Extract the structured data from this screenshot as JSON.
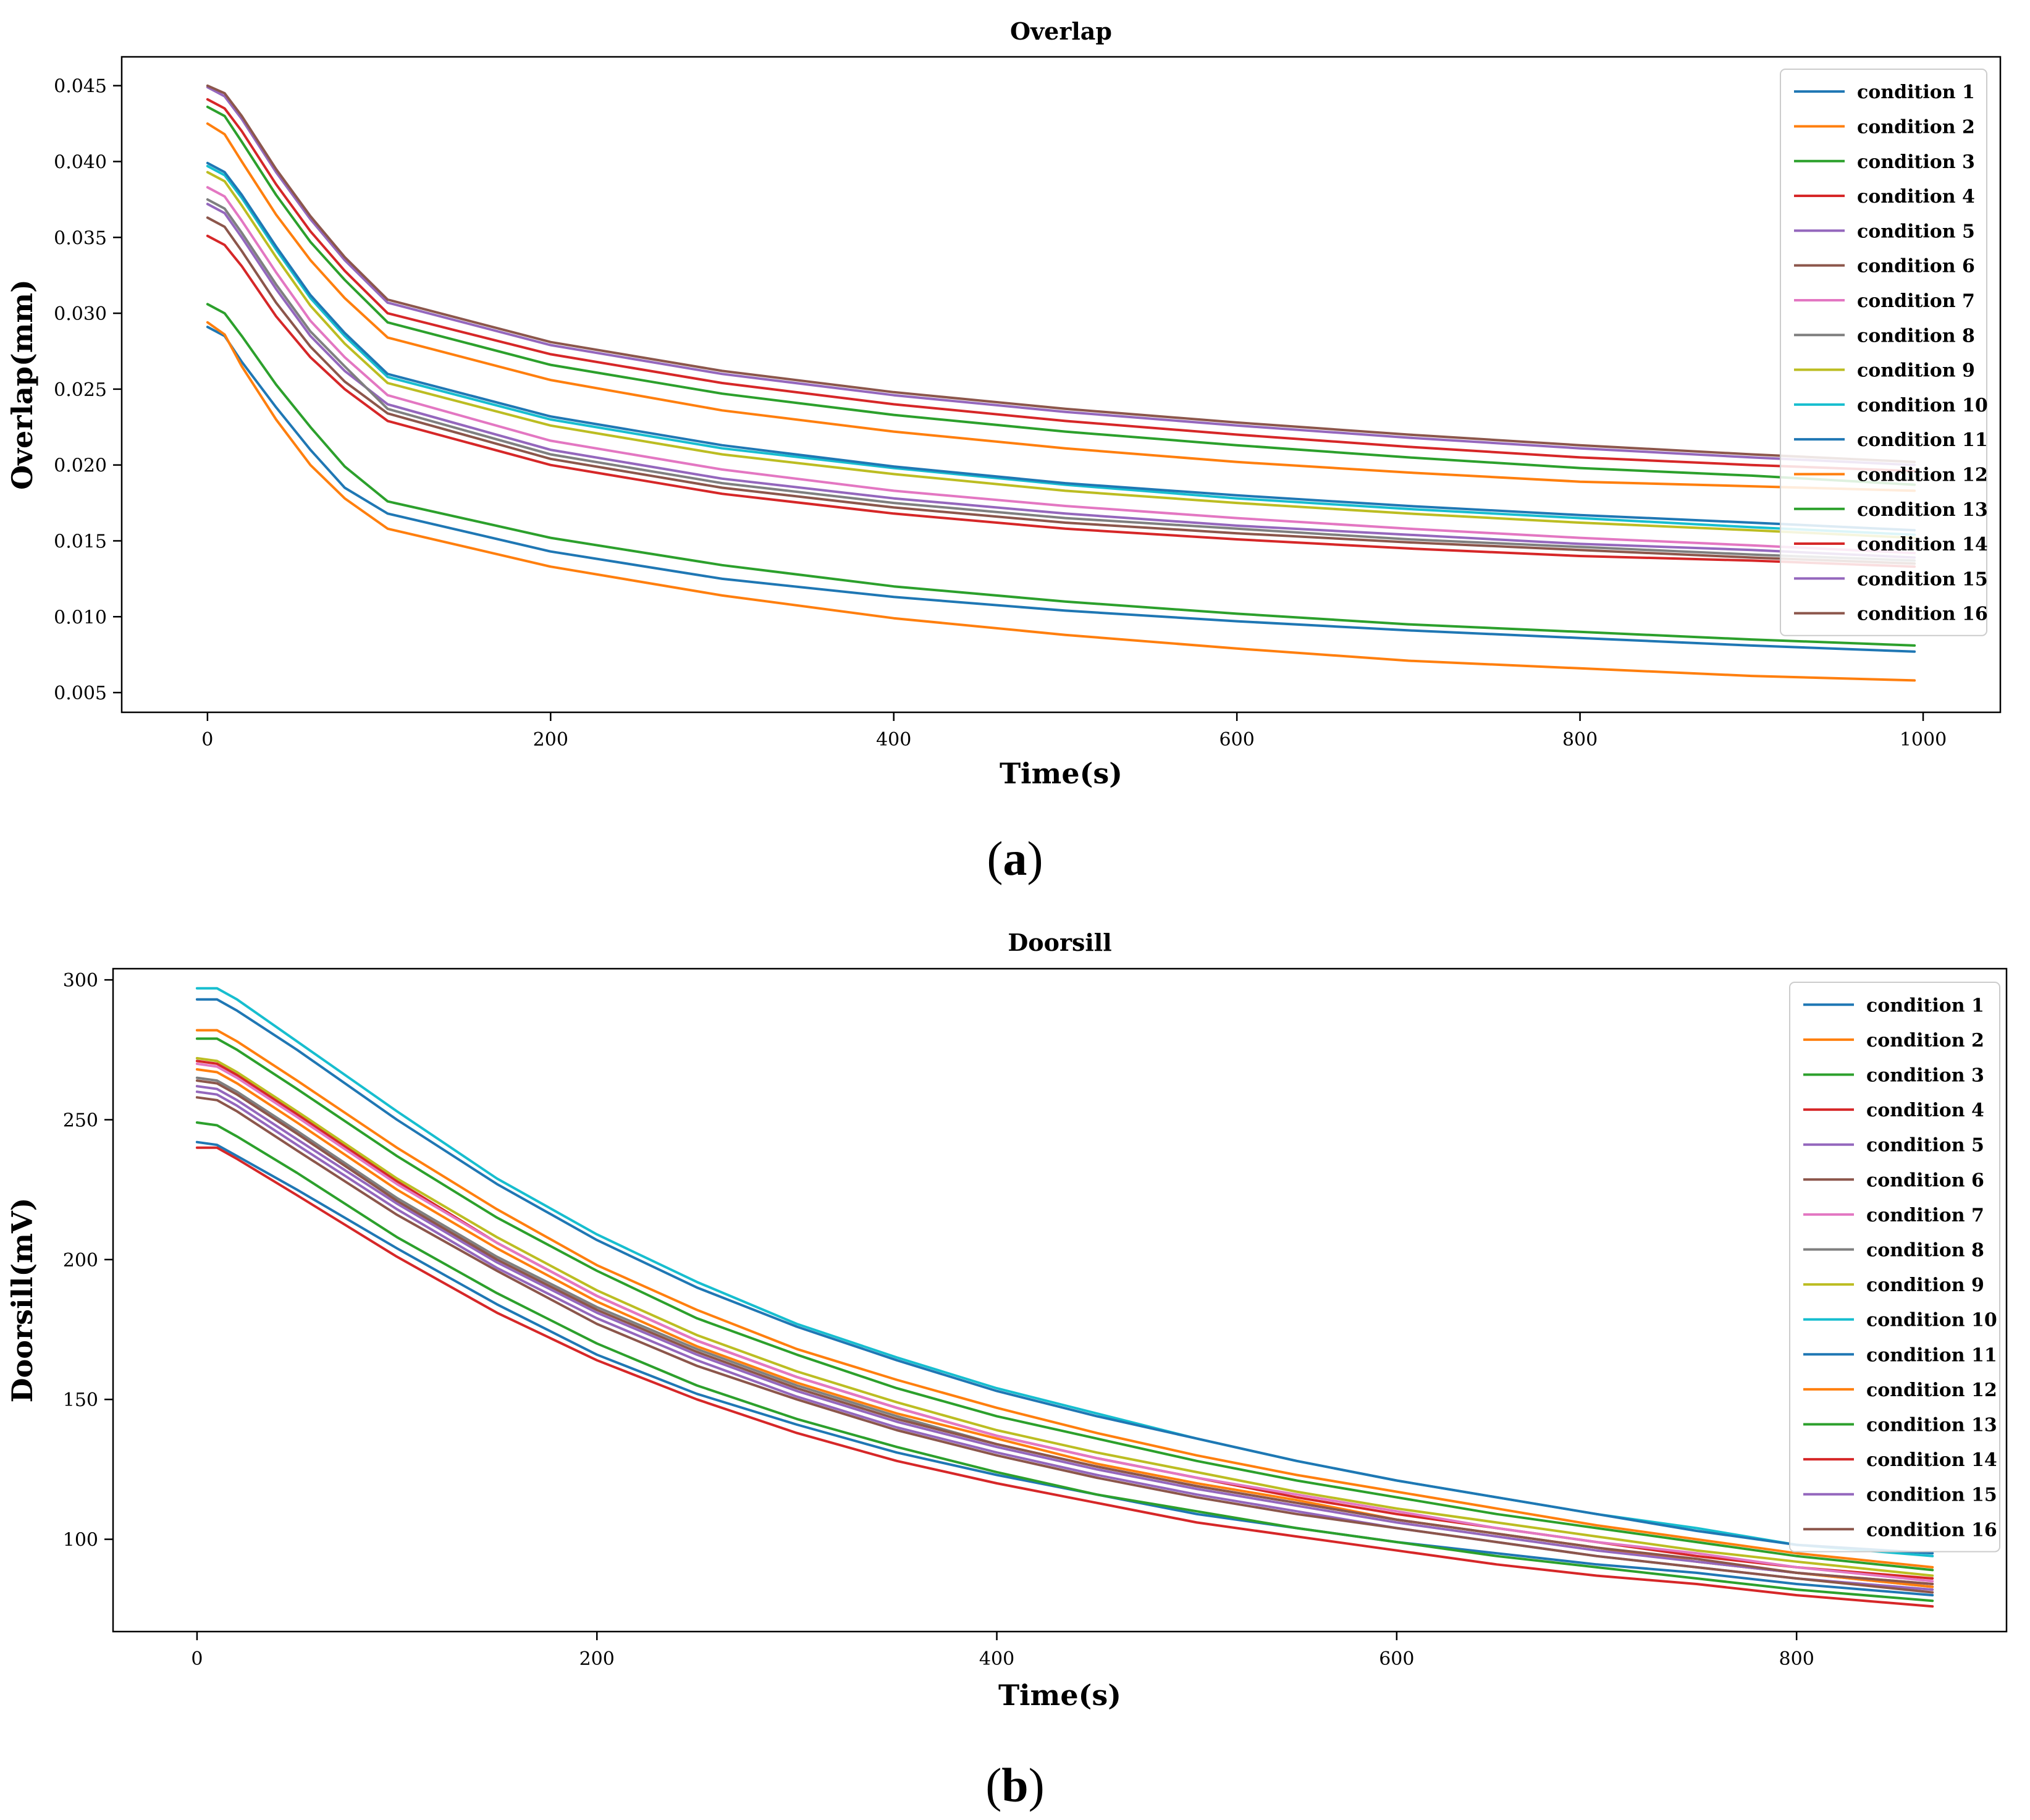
{
  "colors": {
    "palette": [
      "#1f77b4",
      "#ff7f0e",
      "#2ca02c",
      "#d62728",
      "#9467bd",
      "#8c564b",
      "#e377c2",
      "#7f7f7f",
      "#bcbd22",
      "#17becf",
      "#1f77b4",
      "#ff7f0e",
      "#2ca02c",
      "#d62728",
      "#9467bd",
      "#8c564b"
    ]
  },
  "panel_labels": [
    {
      "open": "(",
      "letter": "a",
      "close": ")"
    },
    {
      "open": "(",
      "letter": "b",
      "close": ")"
    }
  ],
  "chart_data": [
    {
      "type": "line",
      "title": "Overlap",
      "xlabel": "Time(s)",
      "ylabel": "Overlap(mm)",
      "xlim": [
        -50,
        1045
      ],
      "ylim": [
        0.0037,
        0.0469
      ],
      "xticks": [
        0,
        200,
        400,
        600,
        800,
        1000
      ],
      "yticks": [
        0.005,
        0.01,
        0.015,
        0.02,
        0.025,
        0.03,
        0.035,
        0.04,
        0.045
      ],
      "ytick_decimals": 3,
      "grid": false,
      "legend": "top-right",
      "x": [
        0,
        10,
        20,
        40,
        60,
        80,
        105,
        200,
        300,
        400,
        500,
        600,
        700,
        800,
        900,
        995
      ],
      "series": [
        {
          "name": "condition 1",
          "values": [
            0.0291,
            0.0285,
            0.0268,
            0.0238,
            0.021,
            0.0185,
            0.0168,
            0.0143,
            0.0125,
            0.0113,
            0.0104,
            0.0097,
            0.0091,
            0.0086,
            0.0081,
            0.0077
          ]
        },
        {
          "name": "condition 2",
          "values": [
            0.0294,
            0.0286,
            0.0265,
            0.023,
            0.02,
            0.0178,
            0.0158,
            0.0133,
            0.0114,
            0.0099,
            0.0088,
            0.0079,
            0.0071,
            0.0066,
            0.0061,
            0.0058
          ]
        },
        {
          "name": "condition 3",
          "values": [
            0.0306,
            0.03,
            0.0285,
            0.0253,
            0.0225,
            0.0199,
            0.0176,
            0.0152,
            0.0134,
            0.012,
            0.011,
            0.0102,
            0.0095,
            0.009,
            0.0085,
            0.0081
          ]
        },
        {
          "name": "condition 4",
          "values": [
            0.0351,
            0.0345,
            0.0331,
            0.0298,
            0.0271,
            0.025,
            0.0229,
            0.02,
            0.0181,
            0.0168,
            0.0158,
            0.0151,
            0.0145,
            0.014,
            0.0137,
            0.0133
          ]
        },
        {
          "name": "condition 5",
          "values": [
            0.0372,
            0.0366,
            0.035,
            0.0316,
            0.0285,
            0.0262,
            0.024,
            0.021,
            0.0191,
            0.0178,
            0.0168,
            0.016,
            0.0154,
            0.0148,
            0.0144,
            0.0139
          ]
        },
        {
          "name": "condition 6",
          "values": [
            0.0363,
            0.0357,
            0.0341,
            0.0307,
            0.0278,
            0.0255,
            0.0234,
            0.0204,
            0.0185,
            0.0172,
            0.0162,
            0.0155,
            0.0149,
            0.0144,
            0.0139,
            0.0135
          ]
        },
        {
          "name": "condition 7",
          "values": [
            0.0383,
            0.0377,
            0.0361,
            0.0327,
            0.0295,
            0.0271,
            0.0246,
            0.0216,
            0.0197,
            0.0183,
            0.0173,
            0.0165,
            0.0158,
            0.0152,
            0.0147,
            0.0142
          ]
        },
        {
          "name": "condition 8",
          "values": [
            0.0375,
            0.0369,
            0.0353,
            0.0319,
            0.0288,
            0.0265,
            0.0237,
            0.0207,
            0.0188,
            0.0175,
            0.0165,
            0.0158,
            0.0151,
            0.0146,
            0.0141,
            0.0137
          ]
        },
        {
          "name": "condition 9",
          "values": [
            0.0393,
            0.0387,
            0.0371,
            0.0337,
            0.0305,
            0.028,
            0.0254,
            0.0226,
            0.0207,
            0.0194,
            0.0183,
            0.0175,
            0.0168,
            0.0162,
            0.0157,
            0.0152
          ]
        },
        {
          "name": "condition 10",
          "values": [
            0.0397,
            0.0391,
            0.0376,
            0.0342,
            0.031,
            0.0285,
            0.0258,
            0.023,
            0.0211,
            0.0198,
            0.0187,
            0.0178,
            0.0171,
            0.0165,
            0.0159,
            0.0154
          ]
        },
        {
          "name": "condition 11",
          "values": [
            0.0399,
            0.0393,
            0.0378,
            0.0344,
            0.0312,
            0.0287,
            0.026,
            0.0232,
            0.0213,
            0.0199,
            0.0188,
            0.018,
            0.0173,
            0.0167,
            0.0162,
            0.0157
          ]
        },
        {
          "name": "condition 12",
          "values": [
            0.0425,
            0.0418,
            0.04,
            0.0365,
            0.0335,
            0.031,
            0.0284,
            0.0256,
            0.0236,
            0.0222,
            0.0211,
            0.0202,
            0.0195,
            0.0189,
            0.0186,
            0.0183
          ]
        },
        {
          "name": "condition 13",
          "values": [
            0.0436,
            0.043,
            0.0413,
            0.0378,
            0.0347,
            0.0322,
            0.0294,
            0.0266,
            0.0247,
            0.0233,
            0.0222,
            0.0213,
            0.0205,
            0.0198,
            0.0193,
            0.0187
          ]
        },
        {
          "name": "condition 14",
          "values": [
            0.0441,
            0.0435,
            0.042,
            0.0385,
            0.0354,
            0.0328,
            0.03,
            0.0273,
            0.0254,
            0.024,
            0.0229,
            0.022,
            0.0212,
            0.0205,
            0.02,
            0.0196
          ]
        },
        {
          "name": "condition 15",
          "values": [
            0.0449,
            0.0443,
            0.0428,
            0.0393,
            0.0362,
            0.0335,
            0.0307,
            0.0279,
            0.026,
            0.0246,
            0.0235,
            0.0226,
            0.0218,
            0.0211,
            0.0205,
            0.02
          ]
        },
        {
          "name": "condition 16",
          "values": [
            0.045,
            0.0445,
            0.043,
            0.0395,
            0.0364,
            0.0337,
            0.0309,
            0.0281,
            0.0262,
            0.0248,
            0.0237,
            0.0228,
            0.022,
            0.0213,
            0.0207,
            0.0202
          ]
        }
      ]
    },
    {
      "type": "line",
      "title": "Doorsill",
      "xlabel": "Time(s)",
      "ylabel": "Doorsill(mV)",
      "xlim": [
        -42,
        905
      ],
      "ylim": [
        67,
        304
      ],
      "xticks": [
        0,
        200,
        400,
        600,
        800
      ],
      "yticks": [
        100,
        150,
        200,
        250,
        300
      ],
      "ytick_decimals": 0,
      "grid": false,
      "legend": "top-right",
      "x": [
        0,
        10,
        20,
        50,
        100,
        150,
        200,
        250,
        300,
        350,
        400,
        450,
        500,
        550,
        600,
        650,
        700,
        750,
        800,
        868
      ],
      "series": [
        {
          "name": "condition 1",
          "values": [
            242,
            241,
            237,
            225,
            204,
            184,
            166,
            152,
            141,
            131,
            123,
            116,
            109,
            104,
            99,
            95,
            91,
            88,
            84,
            80
          ]
        },
        {
          "name": "condition 2",
          "values": [
            282,
            282,
            278,
            264,
            240,
            218,
            198,
            182,
            168,
            157,
            147,
            138,
            130,
            123,
            117,
            111,
            105,
            100,
            95,
            90
          ]
        },
        {
          "name": "condition 3",
          "values": [
            279,
            279,
            275,
            261,
            237,
            215,
            196,
            179,
            166,
            154,
            144,
            136,
            128,
            121,
            115,
            109,
            104,
            99,
            94,
            89
          ]
        },
        {
          "name": "condition 4",
          "values": [
            271,
            270,
            266,
            252,
            228,
            206,
            187,
            171,
            158,
            147,
            137,
            129,
            122,
            115,
            109,
            104,
            99,
            94,
            90,
            86
          ]
        },
        {
          "name": "condition 5",
          "values": [
            260,
            259,
            255,
            241,
            218,
            197,
            179,
            164,
            151,
            140,
            131,
            123,
            116,
            110,
            104,
            99,
            94,
            90,
            86,
            82
          ]
        },
        {
          "name": "condition 6",
          "values": [
            258,
            257,
            253,
            239,
            216,
            196,
            177,
            162,
            150,
            139,
            130,
            122,
            115,
            109,
            104,
            99,
            94,
            90,
            86,
            81
          ]
        },
        {
          "name": "condition 7",
          "values": [
            270,
            269,
            265,
            251,
            227,
            206,
            187,
            171,
            158,
            147,
            137,
            129,
            122,
            116,
            110,
            104,
            99,
            95,
            90,
            85
          ]
        },
        {
          "name": "condition 8",
          "values": [
            265,
            264,
            260,
            246,
            222,
            201,
            183,
            168,
            155,
            144,
            134,
            126,
            119,
            113,
            107,
            102,
            97,
            92,
            88,
            83
          ]
        },
        {
          "name": "condition 9",
          "values": [
            272,
            271,
            267,
            253,
            229,
            208,
            189,
            173,
            160,
            149,
            139,
            131,
            124,
            117,
            111,
            106,
            101,
            96,
            92,
            87
          ]
        },
        {
          "name": "condition 10",
          "values": [
            297,
            297,
            293,
            278,
            253,
            229,
            209,
            192,
            177,
            165,
            154,
            145,
            136,
            128,
            121,
            115,
            109,
            104,
            98,
            94
          ]
        },
        {
          "name": "condition 11",
          "values": [
            293,
            293,
            289,
            275,
            250,
            227,
            207,
            190,
            176,
            164,
            153,
            144,
            136,
            128,
            121,
            115,
            109,
            103,
            98,
            95
          ]
        },
        {
          "name": "condition 12",
          "values": [
            268,
            267,
            263,
            249,
            225,
            204,
            185,
            169,
            156,
            145,
            136,
            127,
            120,
            114,
            107,
            102,
            97,
            92,
            88,
            83
          ]
        },
        {
          "name": "condition 13",
          "values": [
            249,
            248,
            244,
            231,
            208,
            188,
            170,
            155,
            143,
            133,
            124,
            116,
            110,
            104,
            99,
            94,
            90,
            86,
            82,
            78
          ]
        },
        {
          "name": "condition 14",
          "values": [
            240,
            240,
            236,
            223,
            201,
            181,
            164,
            150,
            138,
            128,
            120,
            113,
            106,
            101,
            96,
            91,
            87,
            84,
            80,
            76
          ]
        },
        {
          "name": "condition 15",
          "values": [
            262,
            261,
            257,
            243,
            220,
            199,
            181,
            166,
            153,
            142,
            133,
            125,
            118,
            112,
            106,
            101,
            96,
            92,
            88,
            84
          ]
        },
        {
          "name": "condition 16",
          "values": [
            264,
            263,
            259,
            245,
            221,
            200,
            182,
            167,
            154,
            143,
            134,
            126,
            119,
            113,
            107,
            102,
            97,
            93,
            88,
            84
          ]
        }
      ]
    }
  ]
}
